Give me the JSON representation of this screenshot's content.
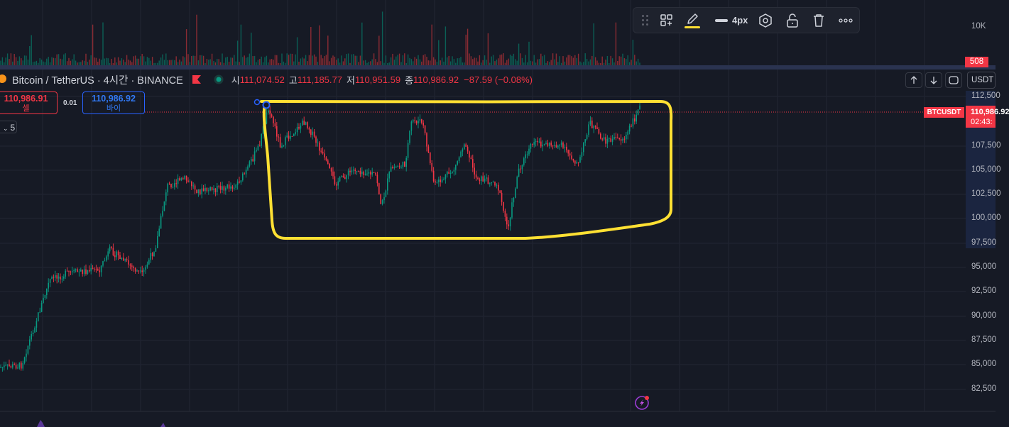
{
  "legend": {
    "symbol": "Bitcoin / TetherUS · 4시간 · BINANCE",
    "open_key": "시",
    "open": "111,074.52",
    "high_key": "고",
    "high": "111,185.77",
    "low_key": "저",
    "low": "110,951.59",
    "close_key": "종",
    "close": "110,986.92",
    "change": "−87.59 (−0.08%)"
  },
  "trade": {
    "sell_price": "110,986.91",
    "sell_label": "셀",
    "spread": "0.01",
    "buy_price": "110,986.92",
    "buy_label": "바이"
  },
  "indicators_collapse": "5",
  "toolbar": {
    "width_label": "4px"
  },
  "volume": {
    "axis_label": "10K",
    "last_volume": "508"
  },
  "price_axis": {
    "currency": "USDT",
    "ticks": [
      "112,500",
      "107,500",
      "105,000",
      "102,500",
      "100,000",
      "97,500",
      "95,000",
      "92,500",
      "90,000",
      "87,500",
      "85,000",
      "82,500"
    ],
    "last_price": "110,986.92",
    "countdown": "02:43:",
    "symbol_tag": "BTCUSDT"
  },
  "colors": {
    "background": "#161a25",
    "up": "#089981",
    "down": "#f23645",
    "highlight_stroke": "#ffe033",
    "accent_blue": "#2962ff"
  }
}
